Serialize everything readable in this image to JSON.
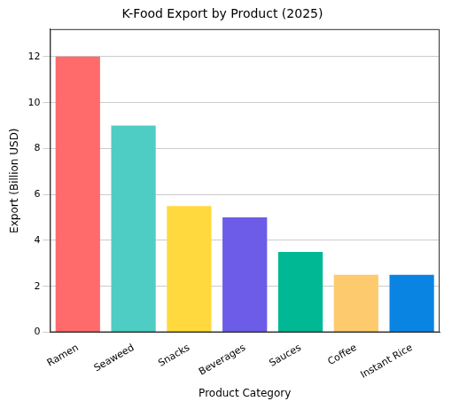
{
  "chart_data": {
    "type": "bar",
    "title": "K-Food Export by Product (2025)",
    "x_label": "Product Category",
    "y_label": "Export (Billion USD)",
    "categories": [
      "Ramen",
      "Seaweed",
      "Snacks",
      "Beverages",
      "Sauces",
      "Coffee",
      "Instant Rice"
    ],
    "values": [
      12,
      9,
      5.5,
      5,
      3.5,
      2.5,
      2.5
    ],
    "colors": [
      "#ff6b6b",
      "#4ecdc4",
      "#ffd93d",
      "#6c5ce7",
      "#00b894",
      "#fdcb6e",
      "#0984e3"
    ],
    "ylim": [
      0,
      13.2
    ],
    "yticks": [
      0,
      2,
      4,
      6,
      8,
      10,
      12
    ],
    "grid": true
  }
}
